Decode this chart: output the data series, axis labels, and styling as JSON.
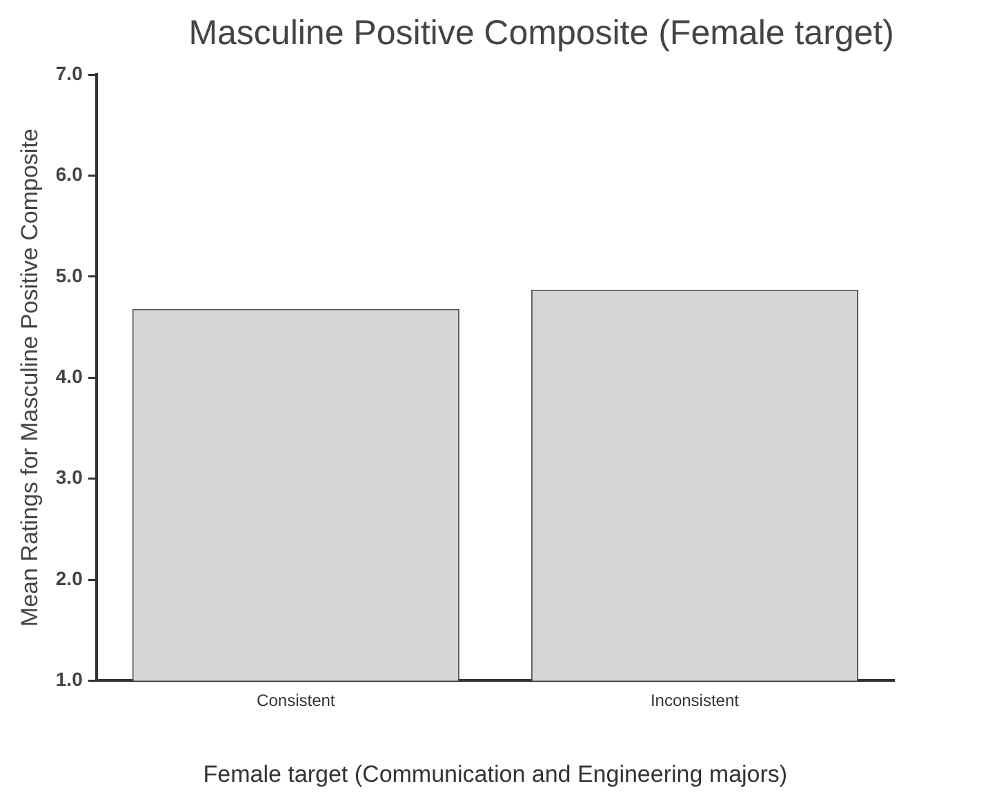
{
  "chart_data": {
    "type": "bar",
    "title": "Masculine Positive Composite (Female target)",
    "xlabel": "Female target (Communication and Engineering majors)",
    "ylabel": "Mean Ratings for Masculine Positive Composite",
    "categories": [
      "Consistent",
      "Inconsistent"
    ],
    "values": [
      4.68,
      4.87
    ],
    "color": "#d6d6d6",
    "ylim": [
      1,
      7
    ],
    "yticks": [
      {
        "value": 1,
        "label": "1.0"
      },
      {
        "value": 2,
        "label": "2.0"
      },
      {
        "value": 3,
        "label": "3.0"
      },
      {
        "value": 4,
        "label": "4.0"
      },
      {
        "value": 5,
        "label": "5.0"
      },
      {
        "value": 6,
        "label": "6.0"
      },
      {
        "value": 7,
        "label": "7.0"
      }
    ],
    "grid": false,
    "legend": false
  }
}
